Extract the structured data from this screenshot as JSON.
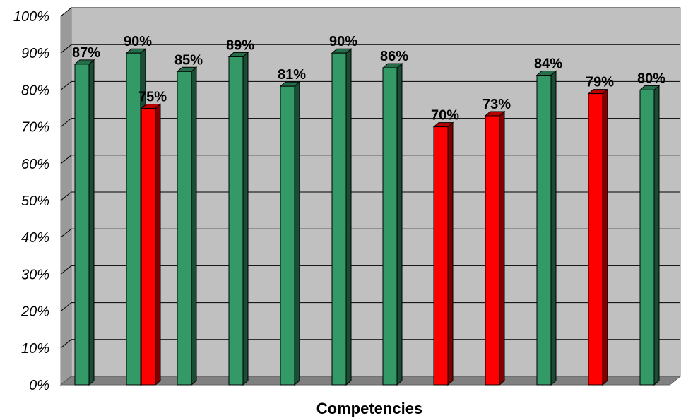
{
  "chart_data": {
    "type": "bar",
    "title": "",
    "xlabel": "Competencies",
    "ylabel": "",
    "ylim": [
      0,
      100
    ],
    "yticks": [
      "0%",
      "10%",
      "20%",
      "30%",
      "40%",
      "50%",
      "60%",
      "70%",
      "80%",
      "90%",
      "100%"
    ],
    "grid": true,
    "legend": "none",
    "bars": [
      {
        "value": 87,
        "label": "87%",
        "color": "#339966"
      },
      {
        "value": 90,
        "label": "90%",
        "color": "#339966"
      },
      {
        "value": 75,
        "label": "75%",
        "color": "#ff0000"
      },
      {
        "value": 85,
        "label": "85%",
        "color": "#339966"
      },
      {
        "value": 89,
        "label": "89%",
        "color": "#339966"
      },
      {
        "value": 81,
        "label": "81%",
        "color": "#339966"
      },
      {
        "value": 90,
        "label": "90%",
        "color": "#339966"
      },
      {
        "value": 86,
        "label": "86%",
        "color": "#339966"
      },
      {
        "value": 70,
        "label": "70%",
        "color": "#ff0000"
      },
      {
        "value": 73,
        "label": "73%",
        "color": "#ff0000"
      },
      {
        "value": 84,
        "label": "84%",
        "color": "#339966"
      },
      {
        "value": 79,
        "label": "79%",
        "color": "#ff0000"
      },
      {
        "value": 80,
        "label": "80%",
        "color": "#339966"
      }
    ]
  }
}
